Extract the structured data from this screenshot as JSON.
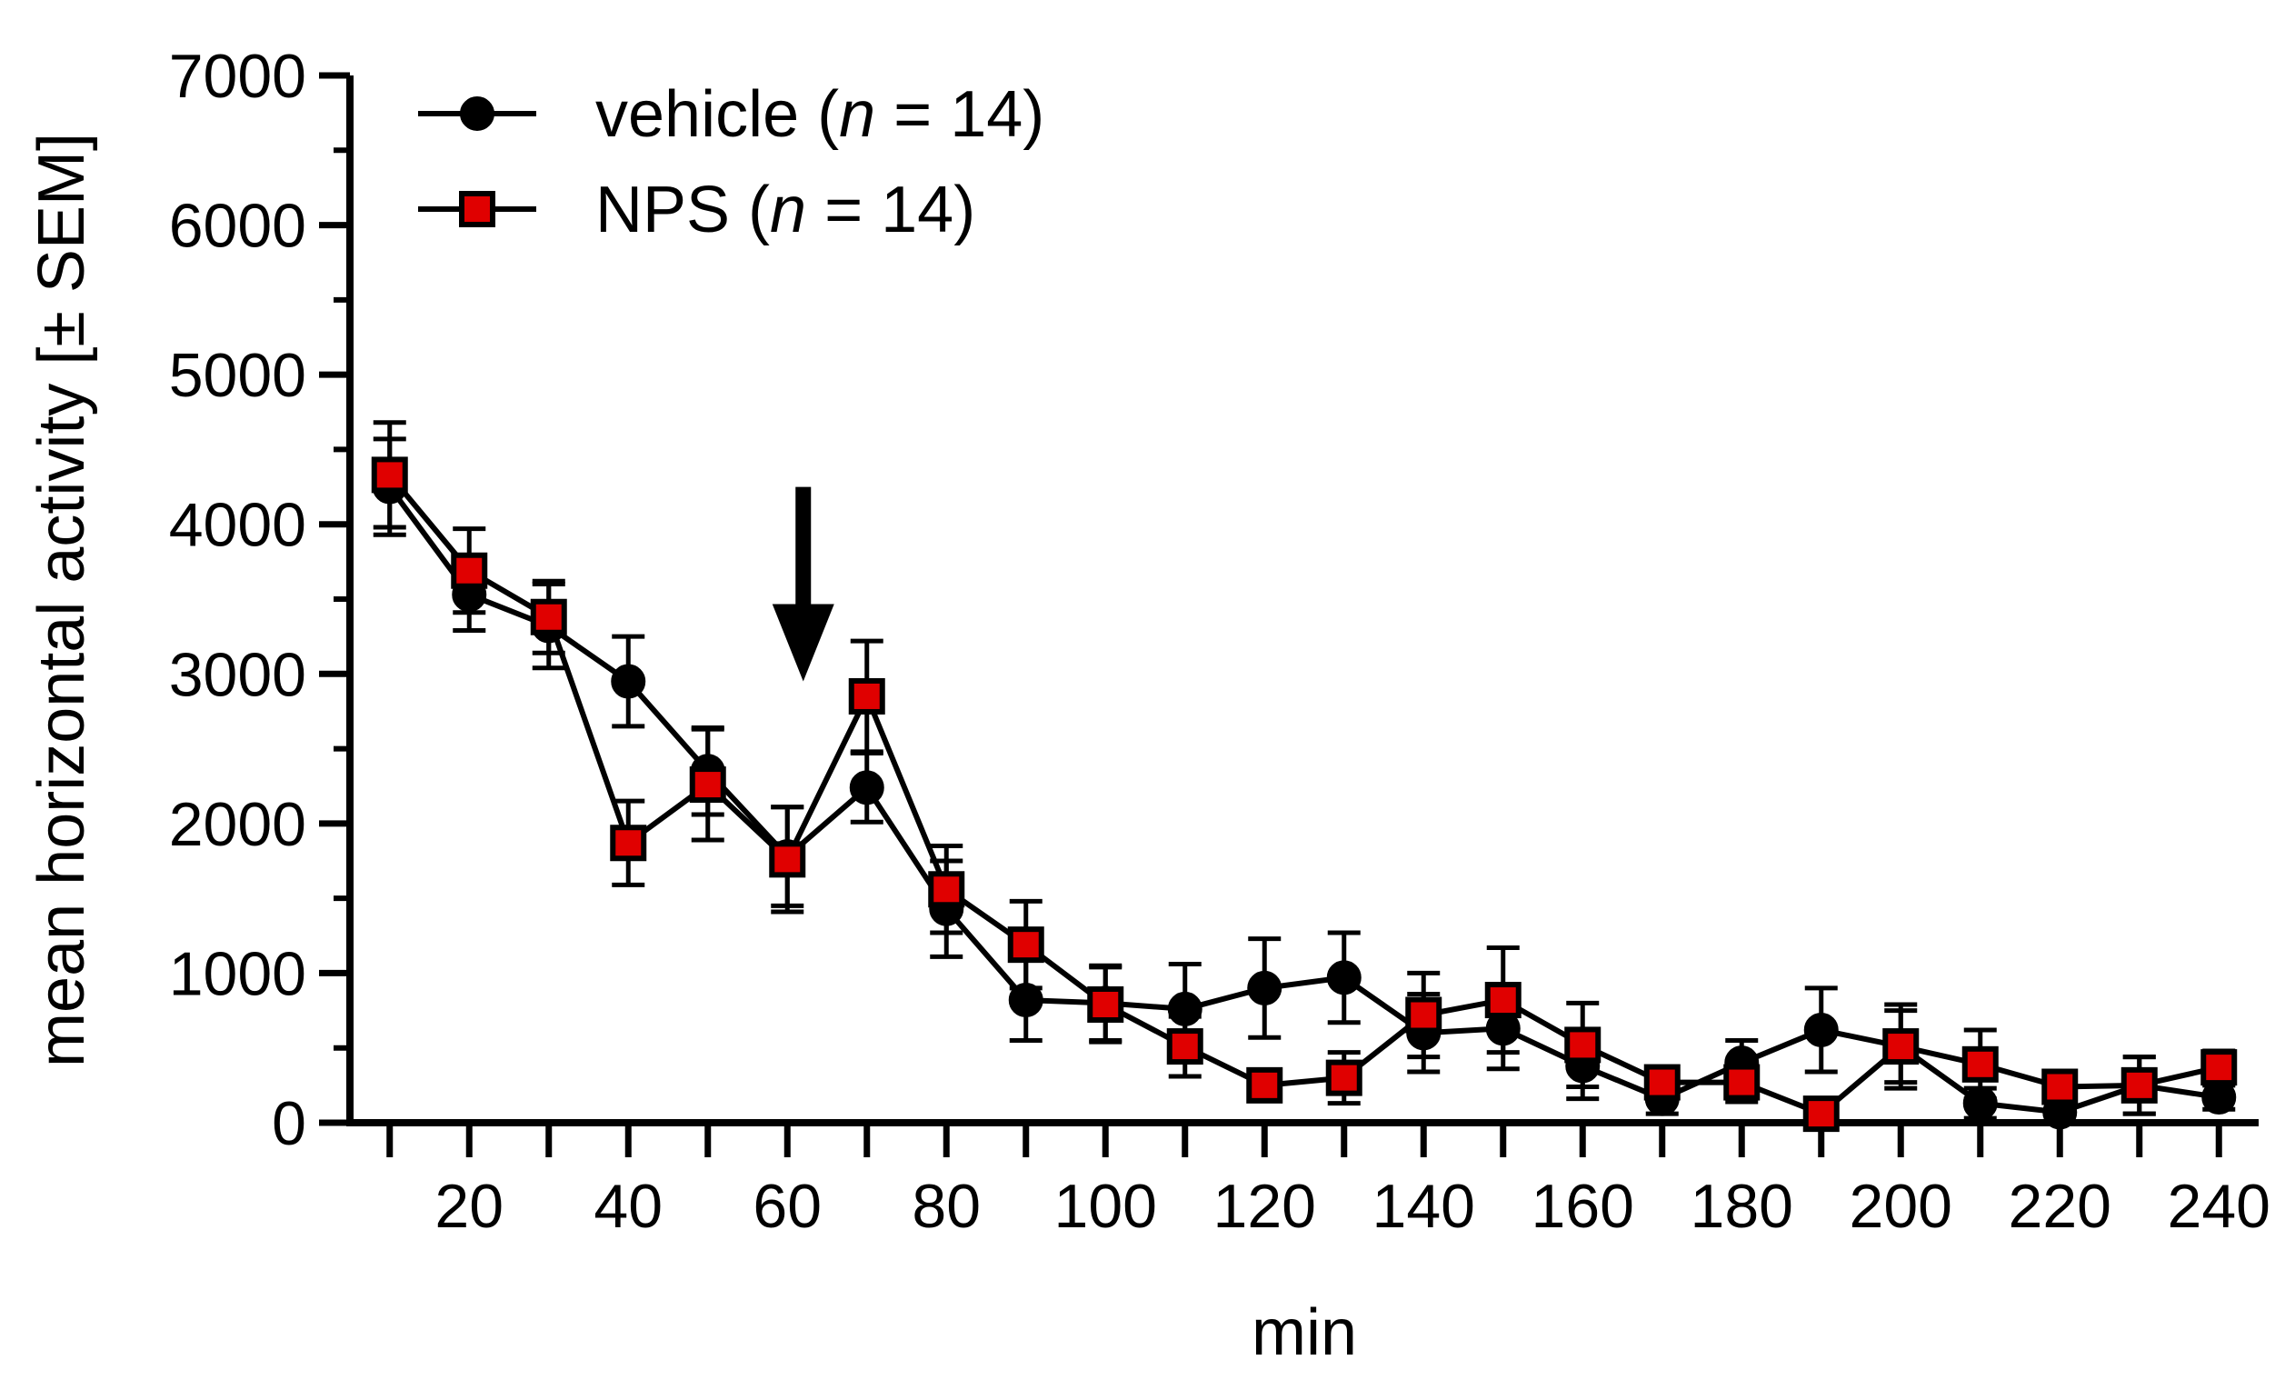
{
  "chart_data": {
    "type": "line",
    "title": "",
    "xlabel": "min",
    "ylabel": "mean horizontal activity [± SEM]",
    "xlim": [
      5,
      245
    ],
    "ylim": [
      0,
      7000
    ],
    "x_ticks": [
      10,
      20,
      30,
      40,
      50,
      60,
      70,
      80,
      90,
      100,
      110,
      120,
      130,
      140,
      150,
      160,
      170,
      180,
      190,
      200,
      210,
      220,
      230,
      240
    ],
    "x_tick_labels": [
      "20",
      "40",
      "60",
      "80",
      "100",
      "120",
      "140",
      "160",
      "180",
      "200",
      "220",
      "240"
    ],
    "x_tick_label_values": [
      20,
      40,
      60,
      80,
      100,
      120,
      140,
      160,
      180,
      200,
      220,
      240
    ],
    "y_ticks": [
      0,
      1000,
      2000,
      3000,
      4000,
      5000,
      6000,
      7000
    ],
    "y_tick_labels": [
      "0",
      "1000",
      "2000",
      "3000",
      "4000",
      "5000",
      "6000",
      "7000"
    ],
    "y_minor_ticks": [
      500,
      1500,
      2500,
      3500,
      4500,
      5500,
      6500
    ],
    "x": [
      10,
      20,
      30,
      40,
      50,
      60,
      70,
      80,
      90,
      100,
      110,
      120,
      130,
      140,
      150,
      160,
      170,
      180,
      190,
      200,
      210,
      220,
      230,
      240
    ],
    "series": [
      {
        "name": "vehicle",
        "n_label": "n",
        "legend_suffix": " = 14)",
        "legend_prefix": "vehicle (",
        "marker": "circle",
        "color": "#000000",
        "values": [
          4250,
          3530,
          3320,
          2950,
          2350,
          1780,
          2240,
          1430,
          820,
          800,
          760,
          900,
          970,
          600,
          630,
          380,
          160,
          400,
          620,
          510,
          130,
          70,
          250,
          170
        ],
        "err": [
          320,
          240,
          280,
          300,
          290,
          330,
          230,
          320,
          270,
          250,
          300,
          330,
          300,
          260,
          270,
          220,
          100,
          150,
          280,
          240,
          100,
          70,
          190,
          80
        ]
      },
      {
        "name": "NPS",
        "n_label": "n",
        "legend_suffix": " = 14)",
        "legend_prefix": "NPS (",
        "marker": "square",
        "color": "#e00000",
        "values": [
          4330,
          3690,
          3380,
          1870,
          2260,
          1760,
          2850,
          1560,
          1190,
          790,
          510,
          250,
          300,
          720,
          820,
          520,
          270,
          270,
          60,
          510,
          390,
          240,
          250,
          370
        ],
        "err": [
          350,
          280,
          240,
          280,
          370,
          350,
          370,
          290,
          290,
          250,
          200,
          80,
          170,
          280,
          350,
          280,
          90,
          130,
          50,
          280,
          230,
          80,
          190,
          110
        ]
      }
    ],
    "annotations": [
      {
        "type": "arrow",
        "direction": "down",
        "x_value": 62,
        "y_top": 4250,
        "y_tip": 2950
      }
    ],
    "legend_position": "top-left",
    "grid": false
  }
}
